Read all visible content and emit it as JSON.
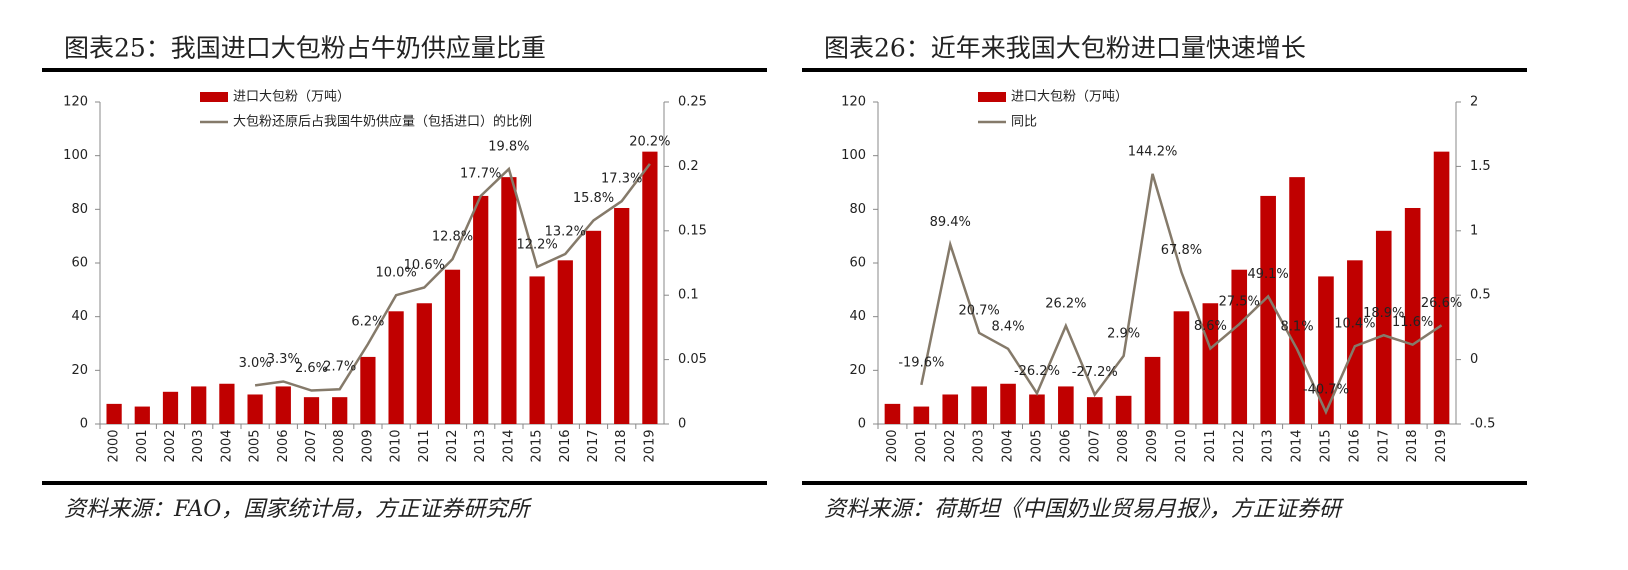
{
  "chart_data": [
    {
      "type": "bar_line",
      "title": "图表25：我国进口大包粉占牛奶供应量比重",
      "source": "资料来源：FAO，国家统计局，方正证券研究所",
      "categories": [
        "2000",
        "2001",
        "2002",
        "2003",
        "2004",
        "2005",
        "2006",
        "2007",
        "2008",
        "2009",
        "2010",
        "2011",
        "2012",
        "2013",
        "2014",
        "2015",
        "2016",
        "2017",
        "2018",
        "2019"
      ],
      "series": [
        {
          "name": "进口大包粉（万吨）",
          "color": "#c00000",
          "kind": "bar",
          "values": [
            7.5,
            6.5,
            12,
            14,
            15,
            11,
            14,
            10,
            10,
            25,
            42,
            45,
            57.5,
            85,
            92,
            55,
            61,
            72,
            80.5,
            101.5
          ]
        },
        {
          "name": "大包粉还原后占我国牛奶供应量（包括进口）的比例",
          "color": "#857a6a",
          "kind": "line",
          "axis": "y2",
          "values": [
            null,
            null,
            null,
            null,
            null,
            0.03,
            0.033,
            0.026,
            0.027,
            0.062,
            0.1,
            0.106,
            0.128,
            0.177,
            0.198,
            0.122,
            0.132,
            0.158,
            0.173,
            0.202
          ],
          "value_labels": [
            null,
            null,
            null,
            null,
            null,
            "3.0%",
            "3.3%",
            "2.6%",
            "2.7%",
            "6.2%",
            "10.0%",
            "10.6%",
            "12.8%",
            "17.7%",
            "19.8%",
            "12.2%",
            "13.2%",
            "15.8%",
            "17.3%",
            "20.2%"
          ]
        }
      ],
      "ylim": [
        0,
        120
      ],
      "yticks": [
        0,
        20,
        40,
        60,
        80,
        100,
        120
      ],
      "y2lim": [
        0,
        0.25
      ],
      "y2ticks": [
        0,
        0.05,
        0.1,
        0.15,
        0.2,
        0.25
      ]
    },
    {
      "type": "bar_line",
      "title": "图表26：近年来我国大包粉进口量快速增长",
      "source": "资料来源：荷斯坦《中国奶业贸易月报》，方正证券研",
      "categories": [
        "2000",
        "2001",
        "2002",
        "2003",
        "2004",
        "2005",
        "2006",
        "2007",
        "2008",
        "2009",
        "2010",
        "2011",
        "2012",
        "2013",
        "2014",
        "2015",
        "2016",
        "2017",
        "2018",
        "2019"
      ],
      "series": [
        {
          "name": "进口大包粉（万吨）",
          "color": "#c00000",
          "kind": "bar",
          "values": [
            7.5,
            6.5,
            11,
            14,
            15,
            11,
            14,
            10,
            10.5,
            25,
            42,
            45,
            57.5,
            85,
            92,
            55,
            61,
            72,
            80.5,
            101.5
          ]
        },
        {
          "name": "同比",
          "color": "#857a6a",
          "kind": "line",
          "axis": "y2",
          "values": [
            null,
            -0.196,
            0.894,
            0.207,
            0.084,
            -0.262,
            0.262,
            -0.272,
            0.029,
            1.442,
            0.678,
            0.086,
            0.275,
            0.491,
            0.081,
            -0.407,
            0.104,
            0.189,
            0.116,
            0.266
          ],
          "value_labels": [
            null,
            "-19.6%",
            "89.4%",
            "20.7%",
            "8.4%",
            "-26.2%",
            "26.2%",
            "-27.2%",
            "2.9%",
            "144.2%",
            "67.8%",
            "8.6%",
            "27.5%",
            "49.1%",
            "8.1%",
            "-40.7%",
            "10.4%",
            "18.9%",
            "11.6%",
            "26.6%"
          ]
        }
      ],
      "ylim": [
        0,
        120
      ],
      "yticks": [
        0,
        20,
        40,
        60,
        80,
        100,
        120
      ],
      "y2lim": [
        -0.5,
        2
      ],
      "y2ticks": [
        -0.5,
        0,
        0.5,
        1,
        1.5,
        2
      ]
    }
  ]
}
